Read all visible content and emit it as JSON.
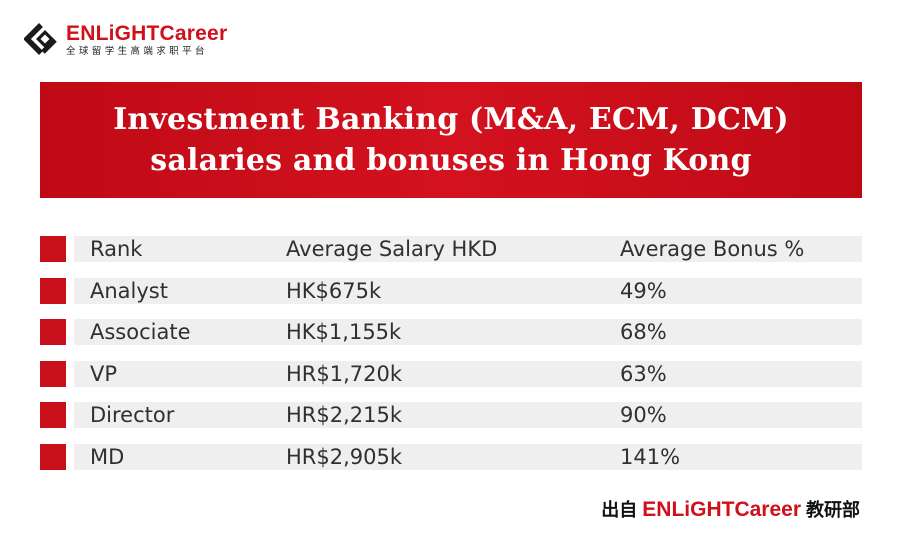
{
  "logo": {
    "brand": "ENLiGHTCareer",
    "tagline": "全球留学生高端求职平台"
  },
  "banner": {
    "title_line1": "Investment Banking (M&A, ECM, DCM)",
    "title_line2": "salaries and bonuses in Hong Kong"
  },
  "table": {
    "header": {
      "rank": "Rank",
      "salary": "Average Salary HKD",
      "bonus": "Average Bonus %"
    },
    "rows": [
      {
        "rank": "Analyst",
        "salary": "HK$675k",
        "bonus": "49%"
      },
      {
        "rank": "Associate",
        "salary": "HK$1,155k",
        "bonus": "68%"
      },
      {
        "rank": "VP",
        "salary": "HR$1,720k",
        "bonus": "63%"
      },
      {
        "rank": "Director",
        "salary": "HR$2,215k",
        "bonus": "90%"
      },
      {
        "rank": "MD",
        "salary": "HR$2,905k",
        "bonus": "141%"
      }
    ]
  },
  "footer": {
    "prefix": "出自",
    "brand": "ENLiGHTCareer",
    "suffix": "教研部"
  },
  "colors": {
    "accent": "#c8101a",
    "brand_red": "#d0111b",
    "row_background": "#efefef"
  }
}
